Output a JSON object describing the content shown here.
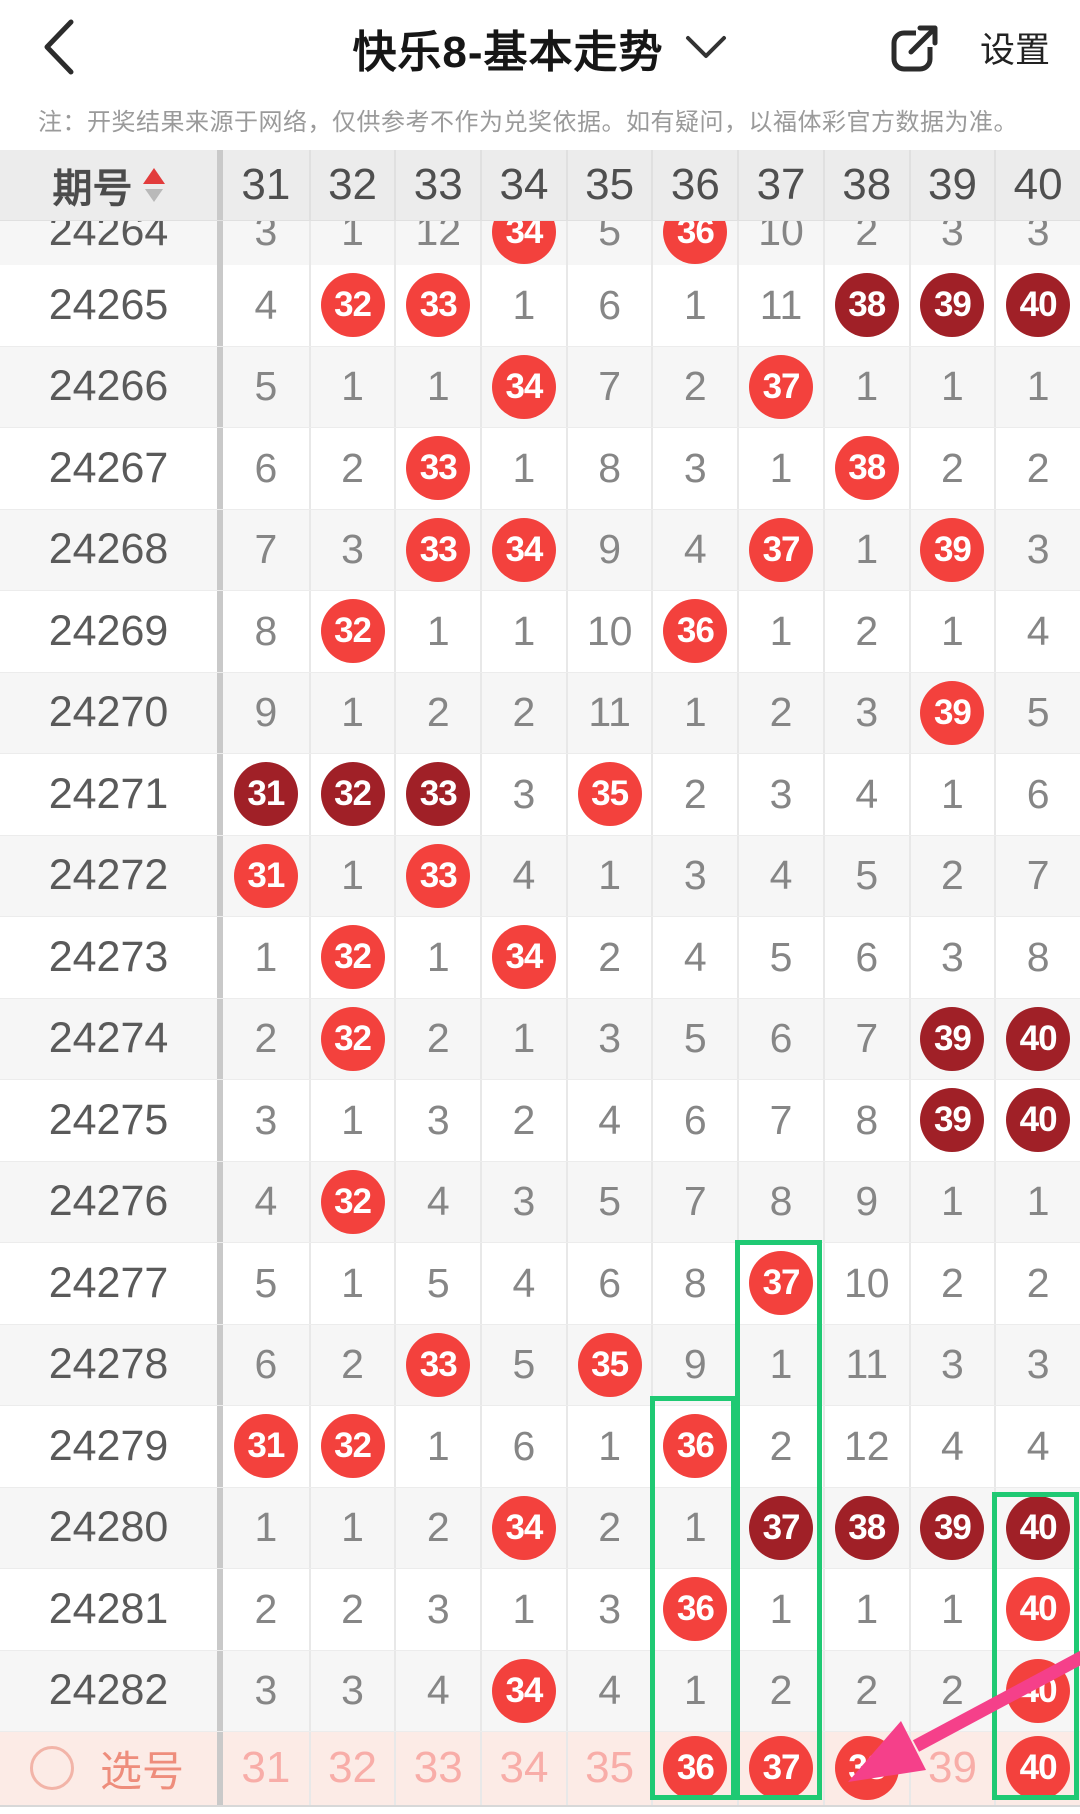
{
  "nav": {
    "back_icon": "chevron-left",
    "title": "快乐8-基本走势",
    "title_dropdown_icon": "chevron-down",
    "share_icon": "share-external",
    "settings_label": "设置"
  },
  "notice": "注：开奖结果来源于网络，仅供参考不作为兑奖依据。如有疑问，以福体彩官方数据为准。",
  "table": {
    "period_header": "期号",
    "sort_icons": [
      "sort-asc-triangle-red",
      "sort-desc-triangle-gray"
    ],
    "columns": [
      "31",
      "32",
      "33",
      "34",
      "35",
      "36",
      "37",
      "38",
      "39",
      "40"
    ],
    "cell_style_legend": {
      "p": "plain miss-count number",
      "h": "drawn number, bright red ball",
      "d": "drawn number, dark red ball"
    },
    "rows": [
      {
        "period": "24264",
        "clipped": true,
        "cells": [
          [
            "3",
            "p"
          ],
          [
            "1",
            "p"
          ],
          [
            "12",
            "p"
          ],
          [
            "34",
            "h"
          ],
          [
            "5",
            "p"
          ],
          [
            "36",
            "h"
          ],
          [
            "10",
            "p"
          ],
          [
            "2",
            "p"
          ],
          [
            "3",
            "p"
          ],
          [
            "3",
            "p"
          ]
        ]
      },
      {
        "period": "24265",
        "cells": [
          [
            "4",
            "p"
          ],
          [
            "32",
            "h"
          ],
          [
            "33",
            "h"
          ],
          [
            "1",
            "p"
          ],
          [
            "6",
            "p"
          ],
          [
            "1",
            "p"
          ],
          [
            "11",
            "p"
          ],
          [
            "38",
            "d"
          ],
          [
            "39",
            "d"
          ],
          [
            "40",
            "d"
          ]
        ]
      },
      {
        "period": "24266",
        "cells": [
          [
            "5",
            "p"
          ],
          [
            "1",
            "p"
          ],
          [
            "1",
            "p"
          ],
          [
            "34",
            "h"
          ],
          [
            "7",
            "p"
          ],
          [
            "2",
            "p"
          ],
          [
            "37",
            "h"
          ],
          [
            "1",
            "p"
          ],
          [
            "1",
            "p"
          ],
          [
            "1",
            "p"
          ]
        ]
      },
      {
        "period": "24267",
        "cells": [
          [
            "6",
            "p"
          ],
          [
            "2",
            "p"
          ],
          [
            "33",
            "h"
          ],
          [
            "1",
            "p"
          ],
          [
            "8",
            "p"
          ],
          [
            "3",
            "p"
          ],
          [
            "1",
            "p"
          ],
          [
            "38",
            "h"
          ],
          [
            "2",
            "p"
          ],
          [
            "2",
            "p"
          ]
        ]
      },
      {
        "period": "24268",
        "cells": [
          [
            "7",
            "p"
          ],
          [
            "3",
            "p"
          ],
          [
            "33",
            "h"
          ],
          [
            "34",
            "h"
          ],
          [
            "9",
            "p"
          ],
          [
            "4",
            "p"
          ],
          [
            "37",
            "h"
          ],
          [
            "1",
            "p"
          ],
          [
            "39",
            "h"
          ],
          [
            "3",
            "p"
          ]
        ]
      },
      {
        "period": "24269",
        "cells": [
          [
            "8",
            "p"
          ],
          [
            "32",
            "h"
          ],
          [
            "1",
            "p"
          ],
          [
            "1",
            "p"
          ],
          [
            "10",
            "p"
          ],
          [
            "36",
            "h"
          ],
          [
            "1",
            "p"
          ],
          [
            "2",
            "p"
          ],
          [
            "1",
            "p"
          ],
          [
            "4",
            "p"
          ]
        ]
      },
      {
        "period": "24270",
        "cells": [
          [
            "9",
            "p"
          ],
          [
            "1",
            "p"
          ],
          [
            "2",
            "p"
          ],
          [
            "2",
            "p"
          ],
          [
            "11",
            "p"
          ],
          [
            "1",
            "p"
          ],
          [
            "2",
            "p"
          ],
          [
            "3",
            "p"
          ],
          [
            "39",
            "h"
          ],
          [
            "5",
            "p"
          ]
        ]
      },
      {
        "period": "24271",
        "cells": [
          [
            "31",
            "d"
          ],
          [
            "32",
            "d"
          ],
          [
            "33",
            "d"
          ],
          [
            "3",
            "p"
          ],
          [
            "35",
            "h"
          ],
          [
            "2",
            "p"
          ],
          [
            "3",
            "p"
          ],
          [
            "4",
            "p"
          ],
          [
            "1",
            "p"
          ],
          [
            "6",
            "p"
          ]
        ]
      },
      {
        "period": "24272",
        "cells": [
          [
            "31",
            "h"
          ],
          [
            "1",
            "p"
          ],
          [
            "33",
            "h"
          ],
          [
            "4",
            "p"
          ],
          [
            "1",
            "p"
          ],
          [
            "3",
            "p"
          ],
          [
            "4",
            "p"
          ],
          [
            "5",
            "p"
          ],
          [
            "2",
            "p"
          ],
          [
            "7",
            "p"
          ]
        ]
      },
      {
        "period": "24273",
        "cells": [
          [
            "1",
            "p"
          ],
          [
            "32",
            "h"
          ],
          [
            "1",
            "p"
          ],
          [
            "34",
            "h"
          ],
          [
            "2",
            "p"
          ],
          [
            "4",
            "p"
          ],
          [
            "5",
            "p"
          ],
          [
            "6",
            "p"
          ],
          [
            "3",
            "p"
          ],
          [
            "8",
            "p"
          ]
        ]
      },
      {
        "period": "24274",
        "cells": [
          [
            "2",
            "p"
          ],
          [
            "32",
            "h"
          ],
          [
            "2",
            "p"
          ],
          [
            "1",
            "p"
          ],
          [
            "3",
            "p"
          ],
          [
            "5",
            "p"
          ],
          [
            "6",
            "p"
          ],
          [
            "7",
            "p"
          ],
          [
            "39",
            "d"
          ],
          [
            "40",
            "d"
          ]
        ]
      },
      {
        "period": "24275",
        "cells": [
          [
            "3",
            "p"
          ],
          [
            "1",
            "p"
          ],
          [
            "3",
            "p"
          ],
          [
            "2",
            "p"
          ],
          [
            "4",
            "p"
          ],
          [
            "6",
            "p"
          ],
          [
            "7",
            "p"
          ],
          [
            "8",
            "p"
          ],
          [
            "39",
            "d"
          ],
          [
            "40",
            "d"
          ]
        ]
      },
      {
        "period": "24276",
        "cells": [
          [
            "4",
            "p"
          ],
          [
            "32",
            "h"
          ],
          [
            "4",
            "p"
          ],
          [
            "3",
            "p"
          ],
          [
            "5",
            "p"
          ],
          [
            "7",
            "p"
          ],
          [
            "8",
            "p"
          ],
          [
            "9",
            "p"
          ],
          [
            "1",
            "p"
          ],
          [
            "1",
            "p"
          ]
        ]
      },
      {
        "period": "24277",
        "cells": [
          [
            "5",
            "p"
          ],
          [
            "1",
            "p"
          ],
          [
            "5",
            "p"
          ],
          [
            "4",
            "p"
          ],
          [
            "6",
            "p"
          ],
          [
            "8",
            "p"
          ],
          [
            "37",
            "h"
          ],
          [
            "10",
            "p"
          ],
          [
            "2",
            "p"
          ],
          [
            "2",
            "p"
          ]
        ]
      },
      {
        "period": "24278",
        "cells": [
          [
            "6",
            "p"
          ],
          [
            "2",
            "p"
          ],
          [
            "33",
            "h"
          ],
          [
            "5",
            "p"
          ],
          [
            "35",
            "h"
          ],
          [
            "9",
            "p"
          ],
          [
            "1",
            "p"
          ],
          [
            "11",
            "p"
          ],
          [
            "3",
            "p"
          ],
          [
            "3",
            "p"
          ]
        ]
      },
      {
        "period": "24279",
        "cells": [
          [
            "31",
            "h"
          ],
          [
            "32",
            "h"
          ],
          [
            "1",
            "p"
          ],
          [
            "6",
            "p"
          ],
          [
            "1",
            "p"
          ],
          [
            "36",
            "h"
          ],
          [
            "2",
            "p"
          ],
          [
            "12",
            "p"
          ],
          [
            "4",
            "p"
          ],
          [
            "4",
            "p"
          ]
        ]
      },
      {
        "period": "24280",
        "cells": [
          [
            "1",
            "p"
          ],
          [
            "1",
            "p"
          ],
          [
            "2",
            "p"
          ],
          [
            "34",
            "h"
          ],
          [
            "2",
            "p"
          ],
          [
            "1",
            "p"
          ],
          [
            "37",
            "d"
          ],
          [
            "38",
            "d"
          ],
          [
            "39",
            "d"
          ],
          [
            "40",
            "d"
          ]
        ]
      },
      {
        "period": "24281",
        "cells": [
          [
            "2",
            "p"
          ],
          [
            "2",
            "p"
          ],
          [
            "3",
            "p"
          ],
          [
            "1",
            "p"
          ],
          [
            "3",
            "p"
          ],
          [
            "36",
            "h"
          ],
          [
            "1",
            "p"
          ],
          [
            "1",
            "p"
          ],
          [
            "1",
            "p"
          ],
          [
            "40",
            "h"
          ]
        ]
      },
      {
        "period": "24282",
        "cells": [
          [
            "3",
            "p"
          ],
          [
            "3",
            "p"
          ],
          [
            "4",
            "p"
          ],
          [
            "34",
            "h"
          ],
          [
            "4",
            "p"
          ],
          [
            "1",
            "p"
          ],
          [
            "2",
            "p"
          ],
          [
            "2",
            "p"
          ],
          [
            "2",
            "p"
          ],
          [
            "40",
            "h"
          ]
        ]
      }
    ]
  },
  "pick_row": {
    "radio_state": "unchecked",
    "label": "选号",
    "cell_style_legend": {
      "f": "faded unselected number",
      "k": "picked number, red ball"
    },
    "cells": [
      [
        "31",
        "f"
      ],
      [
        "32",
        "f"
      ],
      [
        "33",
        "f"
      ],
      [
        "34",
        "f"
      ],
      [
        "35",
        "f"
      ],
      [
        "36",
        "k"
      ],
      [
        "37",
        "k"
      ],
      [
        "38",
        "k"
      ],
      [
        "39",
        "f"
      ],
      [
        "40",
        "k"
      ]
    ]
  },
  "annotations": {
    "highlight_boxes": [
      {
        "column": "36",
        "from_period": "24279"
      },
      {
        "column": "37",
        "from_period": "24277"
      },
      {
        "column": "40",
        "from_period": "24280"
      }
    ],
    "arrow": {
      "shape": "diagonal-arrow-from-top-right",
      "points_to_column": "38",
      "row": "pick_row"
    }
  },
  "colors": {
    "ball_red": "#f3413d",
    "ball_dark_red": "#a02027",
    "highlight_green": "#1fc973",
    "arrow_pink": "#f5408a",
    "pick_row_bg": "#fcebe6",
    "pick_faded_text": "#f8ada8",
    "header_bg": "#ececec",
    "zebra_bg": "#f6f6f6",
    "sort_up_red": "#e23c3c"
  }
}
